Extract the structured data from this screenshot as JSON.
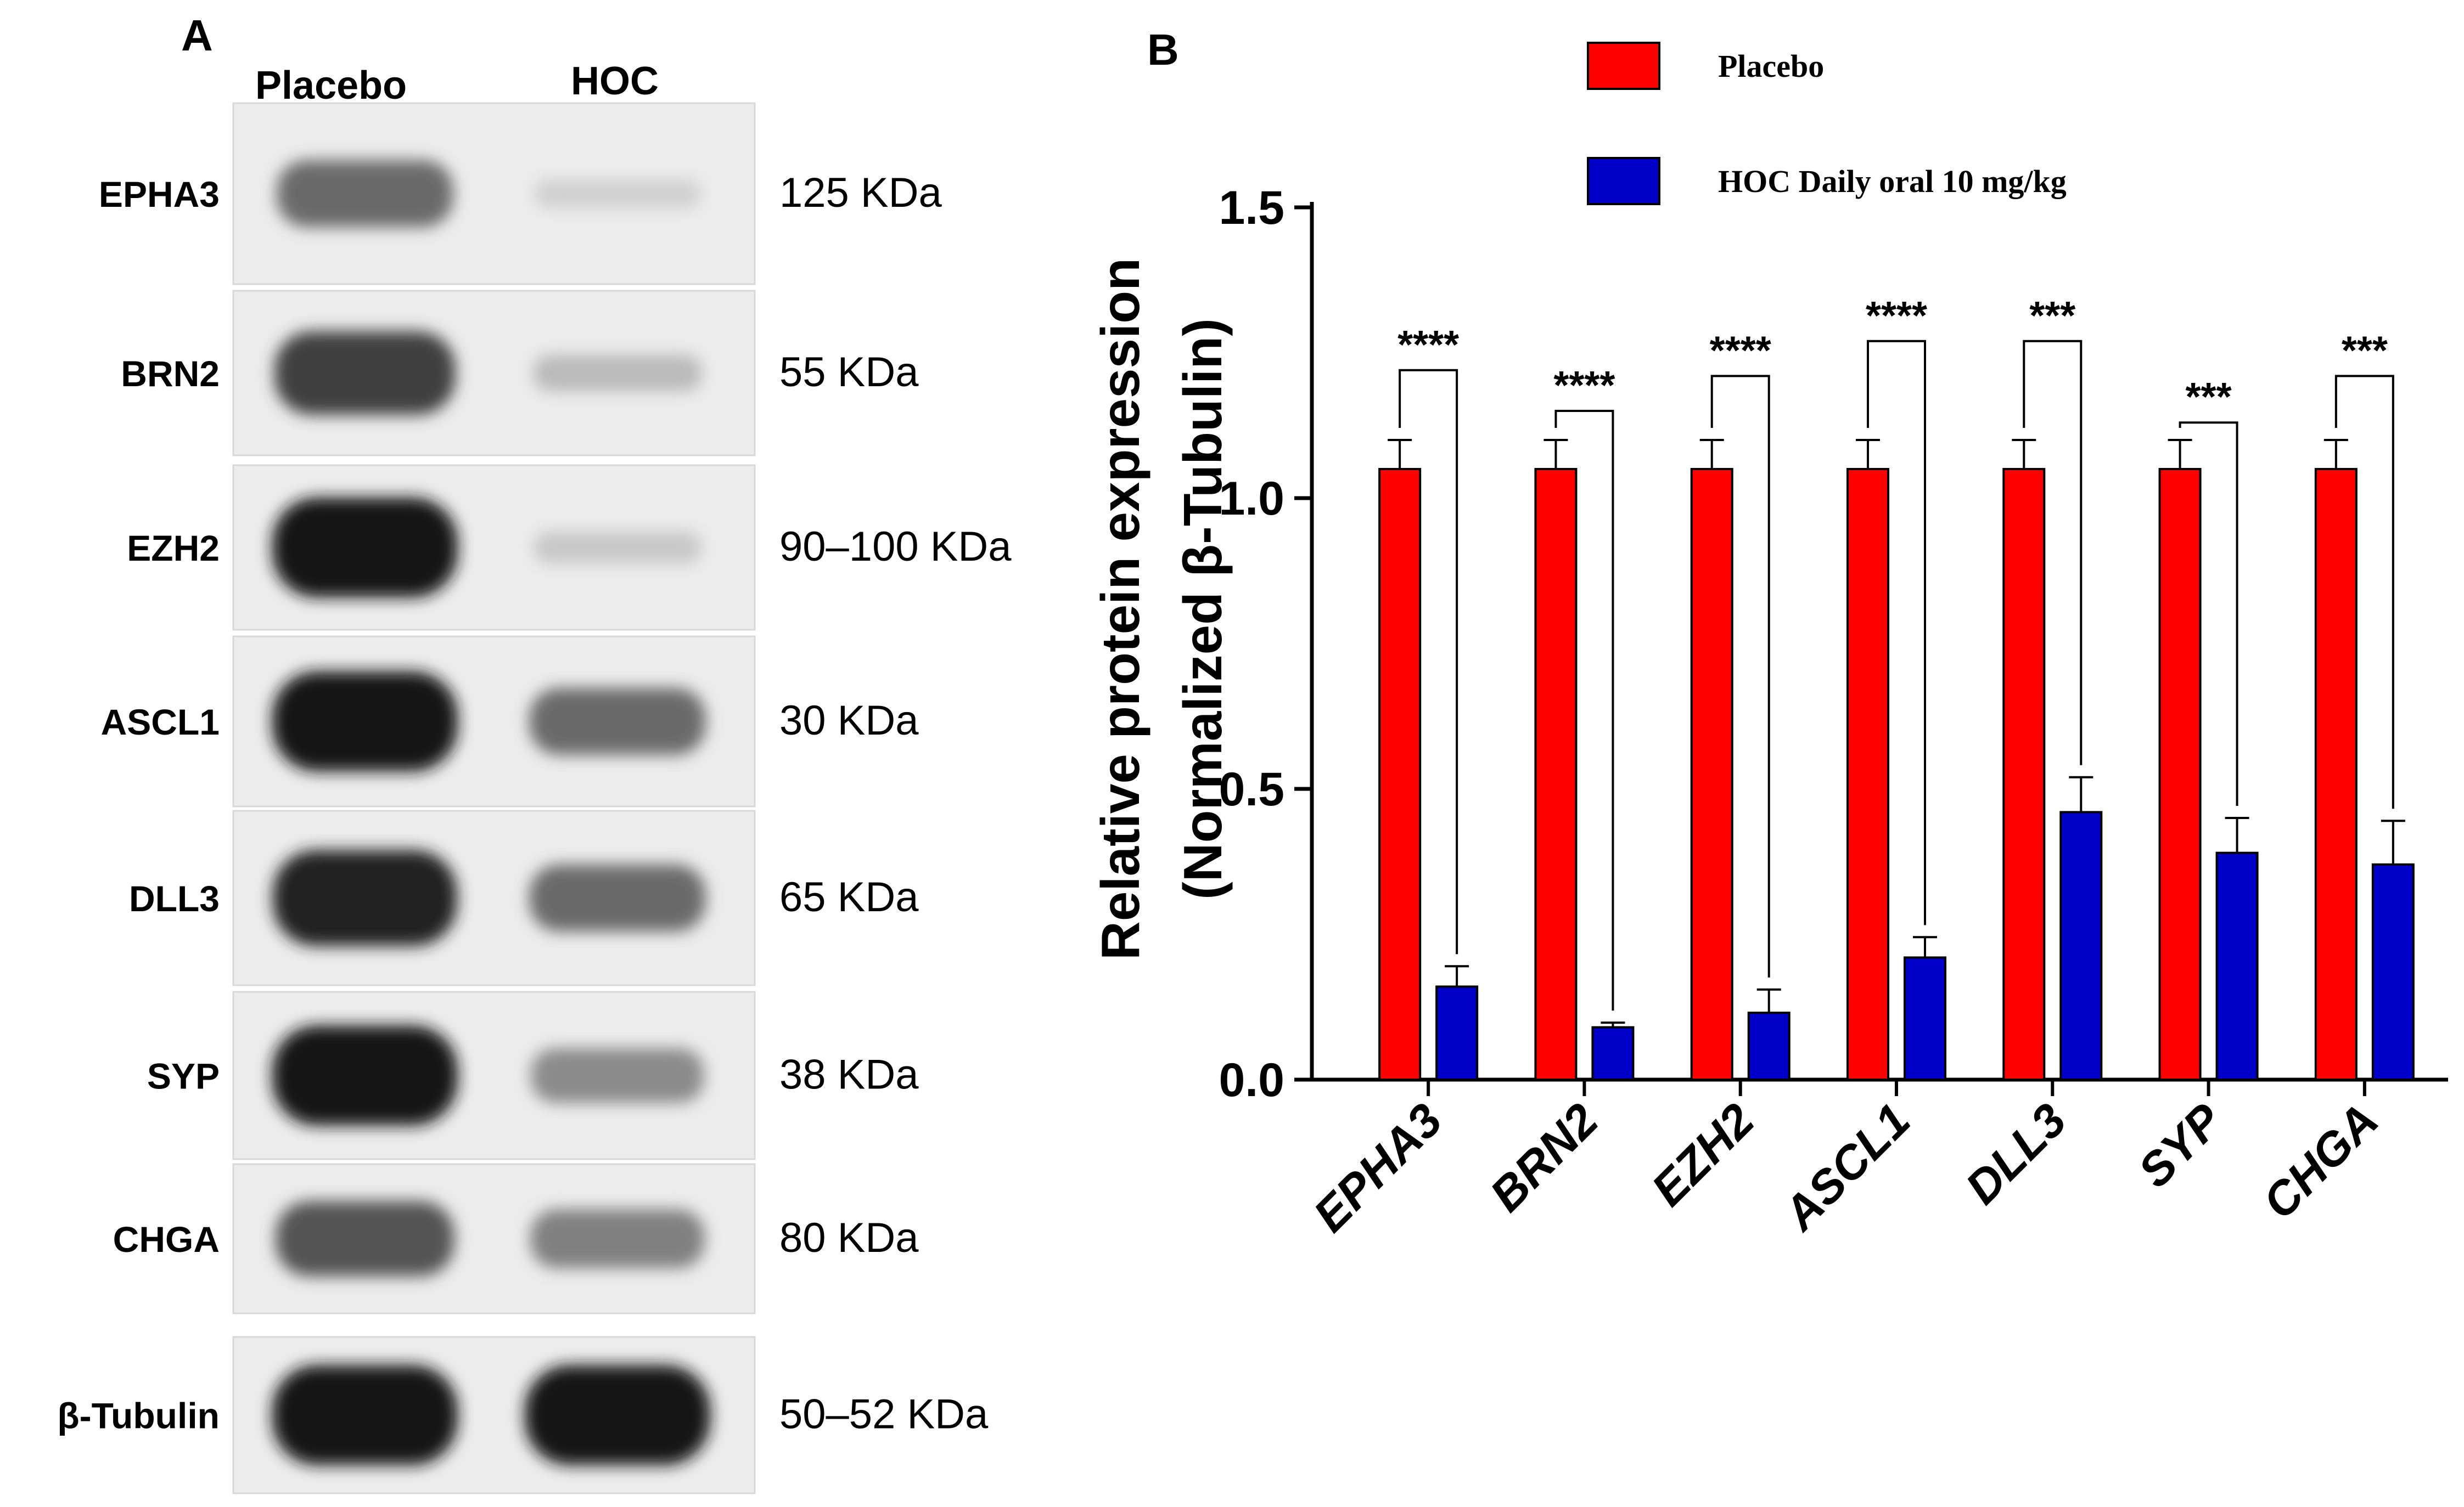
{
  "panel_a": {
    "letter": "A",
    "column_headers": [
      "Placebo",
      "HOC"
    ],
    "blots": [
      {
        "protein": "EPHA3",
        "kda": "125 KDa",
        "placebo_level": 0.55,
        "hoc_level": 0.08
      },
      {
        "protein": "BRN2",
        "kda": "55 KDa",
        "placebo_level": 0.75,
        "hoc_level": 0.18
      },
      {
        "protein": "EZH2",
        "kda": "90–100 KDa",
        "placebo_level": 0.95,
        "hoc_level": 0.12
      },
      {
        "protein": "ASCL1",
        "kda": "30 KDa",
        "placebo_level": 0.95,
        "hoc_level": 0.55
      },
      {
        "protein": "DLL3",
        "kda": "65 KDa",
        "placebo_level": 0.9,
        "hoc_level": 0.55
      },
      {
        "protein": "SYP",
        "kda": "38 KDa",
        "placebo_level": 0.95,
        "hoc_level": 0.4
      },
      {
        "protein": "CHGA",
        "kda": "80 KDa",
        "placebo_level": 0.65,
        "hoc_level": 0.45
      },
      {
        "protein": "β-Tubulin",
        "kda": "50–52 KDa",
        "placebo_level": 0.95,
        "hoc_level": 0.95
      }
    ]
  },
  "chart_data": {
    "type": "bar",
    "panel_letter": "B",
    "categories": [
      "EPHA3",
      "BRN2",
      "EZH2",
      "ASCL1",
      "DLL3",
      "SYP",
      "CHGA"
    ],
    "series": [
      {
        "name": "Placebo",
        "color": "#ff0000",
        "values": [
          1.05,
          1.05,
          1.05,
          1.05,
          1.05,
          1.05,
          1.05
        ],
        "errors": [
          0.05,
          0.05,
          0.05,
          0.05,
          0.05,
          0.05,
          0.05
        ]
      },
      {
        "name": "HOC Daily oral 10 mg/kg",
        "color": "#0000c8",
        "values": [
          0.16,
          0.09,
          0.115,
          0.21,
          0.46,
          0.39,
          0.37
        ],
        "errors": [
          0.035,
          0.008,
          0.04,
          0.035,
          0.06,
          0.06,
          0.075
        ]
      }
    ],
    "significance": [
      "****",
      "****",
      "****",
      "****",
      "***",
      "***",
      "***"
    ],
    "bracket_top_y": [
      1.22,
      1.15,
      1.21,
      1.27,
      1.27,
      1.13,
      1.21
    ],
    "ylabel_line1": "Relative protein expression",
    "ylabel_line2": "(Normalized β-Tubulin)",
    "ylim": [
      0,
      1.5
    ],
    "yticks": [
      "0.0",
      "0.5",
      "1.0",
      "1.5"
    ],
    "ytick_values": [
      0,
      0.5,
      1.0,
      1.5
    ],
    "legend_position": "top"
  }
}
